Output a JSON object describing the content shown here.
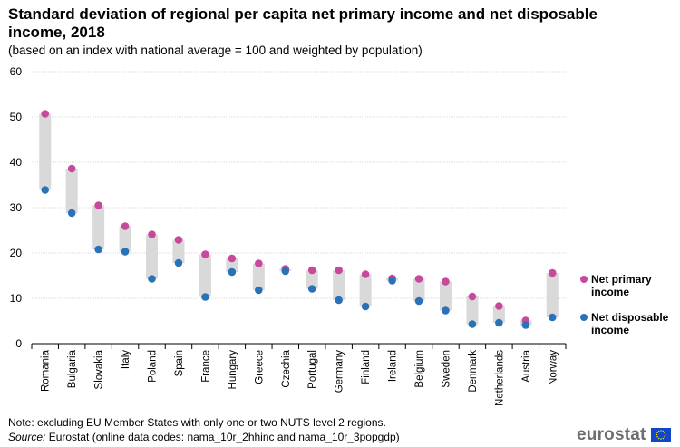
{
  "header": {
    "title": "Standard deviation of regional per capita net primary income and net disposable income, 2018",
    "subtitle": "(based on an index with national average = 100 and weighted by population)"
  },
  "legend": {
    "primary": "Net primary income",
    "disposable": "Net disposable income"
  },
  "footer": {
    "note": "Note: excluding EU Member States with only one or two NUTS level 2 regions.",
    "source_label": "Source:",
    "source_text": " Eurostat (online data codes: nama_10r_2hhinc and nama_10r_3popgdp)",
    "brand": "eurostat"
  },
  "colors": {
    "primary": "#c8489b",
    "disposable": "#2a72b8",
    "range_bar": "#d9d9d9",
    "grid": "#d9d9d9",
    "flag": "#0e47cb"
  },
  "chart_data": {
    "type": "dot-range",
    "categories": [
      "Romania",
      "Bulgaria",
      "Slovakia",
      "Italy",
      "Poland",
      "Spain",
      "France",
      "Hungary",
      "Greece",
      "Czechia",
      "Portugal",
      "Germany",
      "Finland",
      "Ireland",
      "Belgium",
      "Sweden",
      "Denmark",
      "Netherlands",
      "Austria",
      "Norway"
    ],
    "series": [
      {
        "name": "Net primary income",
        "values": [
          50.7,
          38.6,
          30.5,
          25.9,
          24.1,
          22.9,
          19.7,
          18.8,
          17.7,
          16.5,
          16.2,
          16.2,
          15.3,
          14.4,
          14.3,
          13.7,
          10.4,
          8.3,
          5.1,
          15.6
        ]
      },
      {
        "name": "Net disposable income",
        "values": [
          33.9,
          28.8,
          20.8,
          20.3,
          14.3,
          17.8,
          10.3,
          15.8,
          11.8,
          16.0,
          12.1,
          9.6,
          8.2,
          13.9,
          9.4,
          7.3,
          4.3,
          4.6,
          4.1,
          5.8
        ]
      }
    ],
    "y_ticks": [
      "0",
      "10",
      "20",
      "30",
      "40",
      "50",
      "60"
    ],
    "ylim": [
      0,
      60
    ],
    "grid": true,
    "legend_position": "right"
  }
}
